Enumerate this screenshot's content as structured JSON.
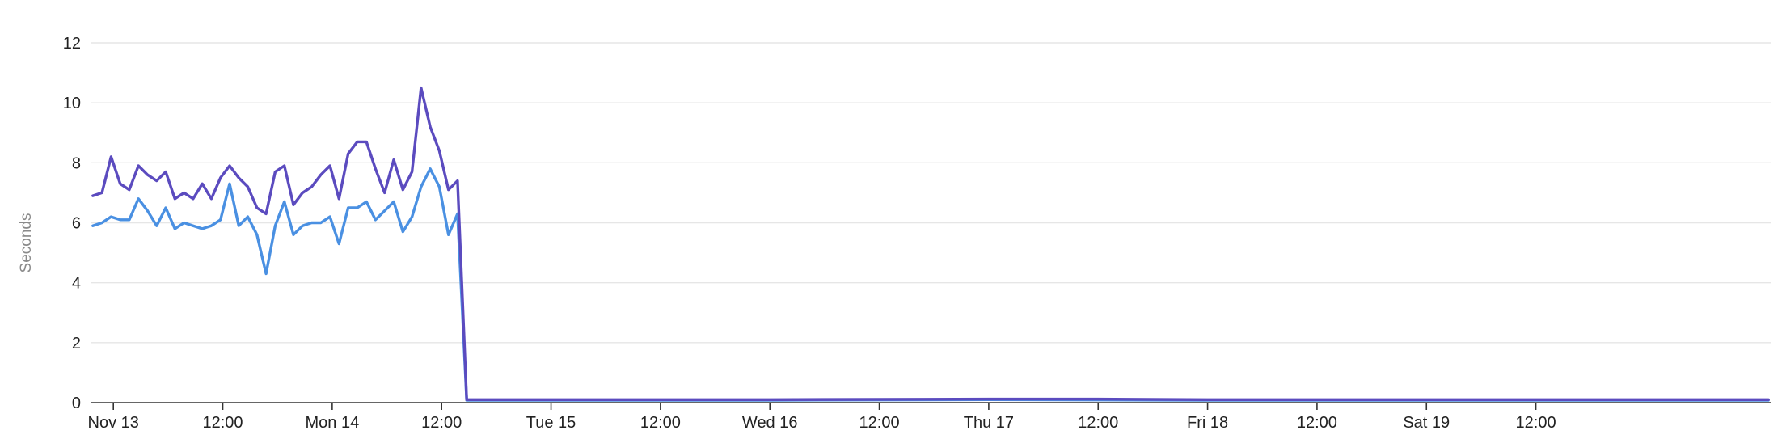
{
  "chart_data": {
    "type": "line",
    "title": "",
    "xlabel": "",
    "ylabel": "Seconds",
    "ylim": [
      0,
      12
    ],
    "yticks": [
      "0",
      "2",
      "4",
      "6",
      "8",
      "10",
      "12"
    ],
    "xlim": [
      "2022-11-12T21:30",
      "2022-11-20T13:45"
    ],
    "xticks": [
      {
        "at": "2022-11-13T00:00",
        "label": "Nov 13"
      },
      {
        "at": "2022-11-13T12:00",
        "label": "12:00"
      },
      {
        "at": "2022-11-14T00:00",
        "label": "Mon 14"
      },
      {
        "at": "2022-11-14T12:00",
        "label": "12:00"
      },
      {
        "at": "2022-11-15T00:00",
        "label": "Tue 15"
      },
      {
        "at": "2022-11-15T12:00",
        "label": "12:00"
      },
      {
        "at": "2022-11-16T00:00",
        "label": "Wed 16"
      },
      {
        "at": "2022-11-16T12:00",
        "label": "12:00"
      },
      {
        "at": "2022-11-17T00:00",
        "label": "Thu 17"
      },
      {
        "at": "2022-11-17T12:00",
        "label": "12:00"
      },
      {
        "at": "2022-11-18T00:00",
        "label": "Fri 18"
      },
      {
        "at": "2022-11-18T12:00",
        "label": "12:00"
      },
      {
        "at": "2022-11-19T00:00",
        "label": "Sat 19"
      },
      {
        "at": "2022-11-19T12:00",
        "label": "12:00"
      }
    ],
    "grid": true,
    "legend": "none",
    "series": [
      {
        "color": "#5b4bbf",
        "points": [
          [
            "2022-11-12T21:45",
            6.9
          ],
          [
            "2022-11-12T22:45",
            7.0
          ],
          [
            "2022-11-12T23:45",
            8.2
          ],
          [
            "2022-11-13T00:45",
            7.3
          ],
          [
            "2022-11-13T01:45",
            7.1
          ],
          [
            "2022-11-13T02:45",
            7.9
          ],
          [
            "2022-11-13T03:45",
            7.6
          ],
          [
            "2022-11-13T04:45",
            7.4
          ],
          [
            "2022-11-13T05:45",
            7.7
          ],
          [
            "2022-11-13T06:45",
            6.8
          ],
          [
            "2022-11-13T07:45",
            7.0
          ],
          [
            "2022-11-13T08:45",
            6.8
          ],
          [
            "2022-11-13T09:45",
            7.3
          ],
          [
            "2022-11-13T10:45",
            6.8
          ],
          [
            "2022-11-13T11:45",
            7.5
          ],
          [
            "2022-11-13T12:45",
            7.9
          ],
          [
            "2022-11-13T13:45",
            7.5
          ],
          [
            "2022-11-13T14:45",
            7.2
          ],
          [
            "2022-11-13T15:45",
            6.5
          ],
          [
            "2022-11-13T16:45",
            6.3
          ],
          [
            "2022-11-13T17:45",
            7.7
          ],
          [
            "2022-11-13T18:45",
            7.9
          ],
          [
            "2022-11-13T19:45",
            6.6
          ],
          [
            "2022-11-13T20:45",
            7.0
          ],
          [
            "2022-11-13T21:45",
            7.2
          ],
          [
            "2022-11-13T22:45",
            7.6
          ],
          [
            "2022-11-13T23:45",
            7.9
          ],
          [
            "2022-11-14T00:45",
            6.8
          ],
          [
            "2022-11-14T01:45",
            8.3
          ],
          [
            "2022-11-14T02:45",
            8.7
          ],
          [
            "2022-11-14T03:45",
            8.7
          ],
          [
            "2022-11-14T04:45",
            7.8
          ],
          [
            "2022-11-14T05:45",
            7.0
          ],
          [
            "2022-11-14T06:45",
            8.1
          ],
          [
            "2022-11-14T07:45",
            7.1
          ],
          [
            "2022-11-14T08:45",
            7.7
          ],
          [
            "2022-11-14T09:45",
            10.5
          ],
          [
            "2022-11-14T10:45",
            9.2
          ],
          [
            "2022-11-14T11:45",
            8.4
          ],
          [
            "2022-11-14T12:45",
            7.1
          ],
          [
            "2022-11-14T13:45",
            7.4
          ],
          [
            "2022-11-14T14:45",
            0.1
          ],
          [
            "2022-11-15T06:00",
            0.1
          ],
          [
            "2022-11-16T00:00",
            0.1
          ],
          [
            "2022-11-17T00:00",
            0.12
          ],
          [
            "2022-11-17T12:00",
            0.12
          ],
          [
            "2022-11-18T00:00",
            0.1
          ],
          [
            "2022-11-19T00:00",
            0.1
          ],
          [
            "2022-11-19T21:00",
            0.1
          ],
          [
            "2022-11-20T13:30",
            0.1
          ]
        ]
      },
      {
        "color": "#4a90e2",
        "points": [
          [
            "2022-11-12T21:45",
            5.9
          ],
          [
            "2022-11-12T22:45",
            6.0
          ],
          [
            "2022-11-12T23:45",
            6.2
          ],
          [
            "2022-11-13T00:45",
            6.1
          ],
          [
            "2022-11-13T01:45",
            6.1
          ],
          [
            "2022-11-13T02:45",
            6.8
          ],
          [
            "2022-11-13T03:45",
            6.4
          ],
          [
            "2022-11-13T04:45",
            5.9
          ],
          [
            "2022-11-13T05:45",
            6.5
          ],
          [
            "2022-11-13T06:45",
            5.8
          ],
          [
            "2022-11-13T07:45",
            6.0
          ],
          [
            "2022-11-13T08:45",
            5.9
          ],
          [
            "2022-11-13T09:45",
            5.8
          ],
          [
            "2022-11-13T10:45",
            5.9
          ],
          [
            "2022-11-13T11:45",
            6.1
          ],
          [
            "2022-11-13T12:45",
            7.3
          ],
          [
            "2022-11-13T13:45",
            5.9
          ],
          [
            "2022-11-13T14:45",
            6.2
          ],
          [
            "2022-11-13T15:45",
            5.6
          ],
          [
            "2022-11-13T16:45",
            4.3
          ],
          [
            "2022-11-13T17:45",
            5.9
          ],
          [
            "2022-11-13T18:45",
            6.7
          ],
          [
            "2022-11-13T19:45",
            5.6
          ],
          [
            "2022-11-13T20:45",
            5.9
          ],
          [
            "2022-11-13T21:45",
            6.0
          ],
          [
            "2022-11-13T22:45",
            6.0
          ],
          [
            "2022-11-13T23:45",
            6.2
          ],
          [
            "2022-11-14T00:45",
            5.3
          ],
          [
            "2022-11-14T01:45",
            6.5
          ],
          [
            "2022-11-14T02:45",
            6.5
          ],
          [
            "2022-11-14T03:45",
            6.7
          ],
          [
            "2022-11-14T04:45",
            6.1
          ],
          [
            "2022-11-14T05:45",
            6.4
          ],
          [
            "2022-11-14T06:45",
            6.7
          ],
          [
            "2022-11-14T07:45",
            5.7
          ],
          [
            "2022-11-14T08:45",
            6.2
          ],
          [
            "2022-11-14T09:45",
            7.2
          ],
          [
            "2022-11-14T10:45",
            7.8
          ],
          [
            "2022-11-14T11:45",
            7.2
          ],
          [
            "2022-11-14T12:45",
            5.6
          ],
          [
            "2022-11-14T13:45",
            6.3
          ],
          [
            "2022-11-14T14:45",
            0.08
          ],
          [
            "2022-11-15T06:00",
            0.08
          ],
          [
            "2022-11-16T00:00",
            0.08
          ],
          [
            "2022-11-17T00:00",
            0.1
          ],
          [
            "2022-11-18T00:00",
            0.08
          ],
          [
            "2022-11-19T00:00",
            0.08
          ],
          [
            "2022-11-20T13:30",
            0.08
          ]
        ]
      }
    ]
  }
}
